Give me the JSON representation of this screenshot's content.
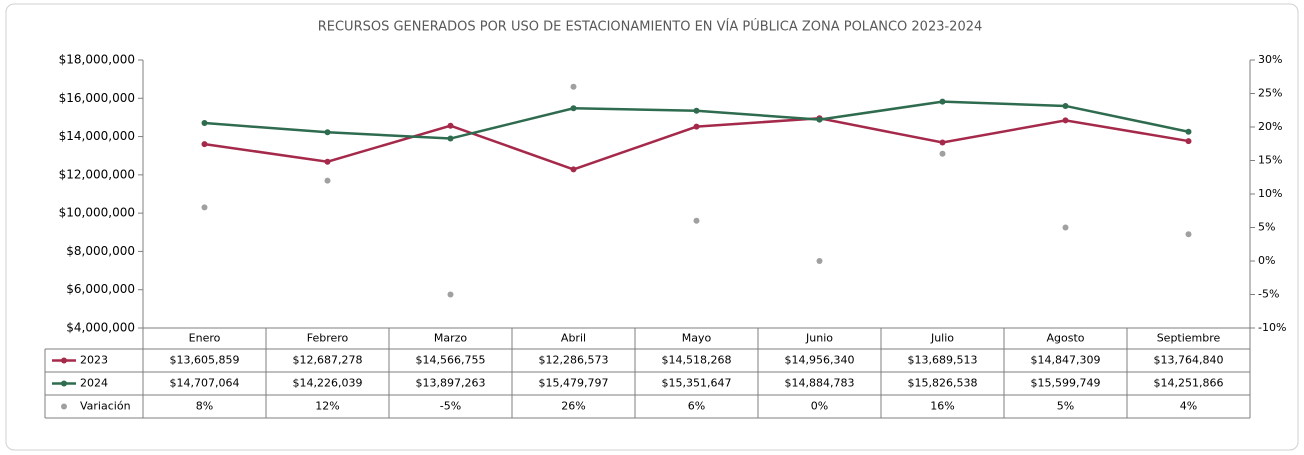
{
  "chart_data": {
    "type": "line",
    "title": "RECURSOS GENERADOS POR USO DE ESTACIONAMIENTO EN VÍA PÚBLICA ZONA POLANCO  2023-2024",
    "categories": [
      "Enero",
      "Febrero",
      "Marzo",
      "Abril",
      "Mayo",
      "Junio",
      "Julio",
      "Agosto",
      "Septiembre"
    ],
    "series": [
      {
        "name": "2023",
        "color": "#a5294a",
        "values": [
          13605859,
          12687278,
          14566755,
          12286573,
          14518268,
          14956340,
          13689513,
          14847309,
          13764840
        ],
        "value_labels": [
          "$13,605,859",
          "$12,687,278",
          "$14,566,755",
          "$12,286,573",
          "$14,518,268",
          "$14,956,340",
          "$13,689,513",
          "$14,847,309",
          "$13,764,840"
        ]
      },
      {
        "name": "2024",
        "color": "#2e6b4f",
        "values": [
          14707064,
          14226039,
          13897263,
          15479797,
          15351647,
          14884783,
          15826538,
          15599749,
          14251866
        ],
        "value_labels": [
          "$14,707,064",
          "$14,226,039",
          "$13,897,263",
          "$15,479,797",
          "$15,351,647",
          "$14,884,783",
          "$15,826,538",
          "$15,599,749",
          "$14,251,866"
        ]
      },
      {
        "name": "Variación",
        "color": "#a0a0a0",
        "axis": "y2",
        "type": "scatter",
        "values": [
          8,
          12,
          -5,
          26,
          6,
          0,
          16,
          5,
          4
        ],
        "value_labels": [
          "8%",
          "12%",
          "-5%",
          "26%",
          "6%",
          "0%",
          "16%",
          "5%",
          "4%"
        ]
      }
    ],
    "ylim": [
      4000000,
      18000000
    ],
    "yticks": [
      {
        "value": 4000000,
        "label": "$4,000,000"
      },
      {
        "value": 6000000,
        "label": "$6,000,000"
      },
      {
        "value": 8000000,
        "label": "$8,000,000"
      },
      {
        "value": 10000000,
        "label": "$10,000,000"
      },
      {
        "value": 12000000,
        "label": "$12,000,000"
      },
      {
        "value": 14000000,
        "label": "$14,000,000"
      },
      {
        "value": 16000000,
        "label": "$16,000,000"
      },
      {
        "value": 18000000,
        "label": "$18,000,000"
      }
    ],
    "y2lim": [
      -10,
      30
    ],
    "y2ticks": [
      {
        "value": -10,
        "label": "-10%"
      },
      {
        "value": -5,
        "label": "-5%"
      },
      {
        "value": 0,
        "label": "0%"
      },
      {
        "value": 5,
        "label": "5%"
      },
      {
        "value": 10,
        "label": "10%"
      },
      {
        "value": 15,
        "label": "15%"
      },
      {
        "value": 20,
        "label": "20%"
      },
      {
        "value": 25,
        "label": "25%"
      },
      {
        "value": 30,
        "label": "30%"
      }
    ],
    "grid": false
  }
}
